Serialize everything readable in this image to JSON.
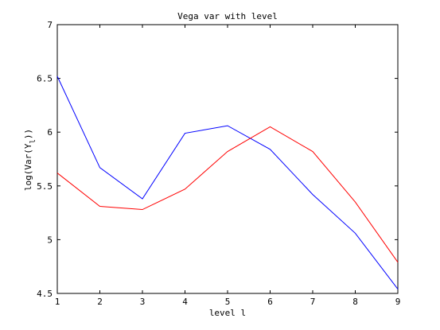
{
  "chart_data": {
    "type": "line",
    "title": "Vega var with level",
    "xlabel": "level l",
    "ylabel": "log(Var(Y_l))",
    "xlim": [
      1,
      9
    ],
    "ylim": [
      4.5,
      7
    ],
    "xticks": [
      1,
      2,
      3,
      4,
      5,
      6,
      7,
      8,
      9
    ],
    "yticks": [
      4.5,
      5,
      5.5,
      6,
      6.5,
      7
    ],
    "ytick_labels": [
      "4.5",
      "5",
      "5.5",
      "6",
      "6.5",
      "7"
    ],
    "grid": false,
    "x": [
      1,
      2,
      3,
      4,
      5,
      6,
      7,
      8,
      9
    ],
    "series": [
      {
        "color": "#0000ff",
        "values": [
          6.52,
          5.67,
          5.38,
          5.99,
          6.06,
          5.84,
          5.42,
          5.06,
          4.54
        ]
      },
      {
        "color": "#ff0000",
        "values": [
          5.62,
          5.31,
          5.28,
          5.47,
          5.82,
          6.05,
          5.82,
          5.35,
          4.79
        ]
      }
    ]
  }
}
